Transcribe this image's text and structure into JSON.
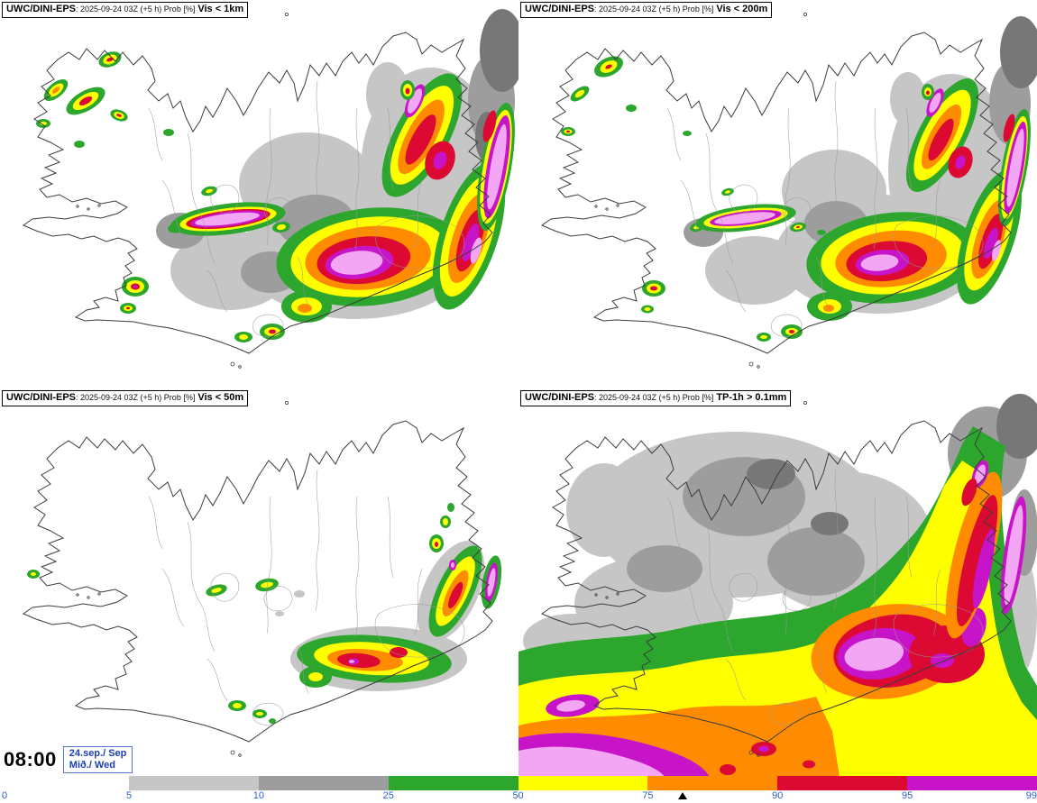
{
  "panels": [
    {
      "model": "UWC/DINI-EPS",
      "run_info": ": 2025-09-24 03Z (+5 h) Prob [%]",
      "variable": "Vis < 1km"
    },
    {
      "model": "UWC/DINI-EPS",
      "run_info": ": 2025-09-24 03Z (+5 h) Prob [%]",
      "variable": "Vis < 200m"
    },
    {
      "model": "UWC/DINI-EPS",
      "run_info": ": 2025-09-24 03Z (+5 h) Prob [%]",
      "variable": "Vis < 50m"
    },
    {
      "model": "UWC/DINI-EPS",
      "run_info": ": 2025-09-24 03Z (+5 h) Prob [%]",
      "variable": "TP-1h > 0.1mm"
    }
  ],
  "footer": {
    "time": "08:00",
    "date": "24.sep./ Sep",
    "weekday": "Mið./ Wed",
    "colorbar": {
      "ticks": [
        "0",
        "5",
        "10",
        "25",
        "50",
        "75",
        "90",
        "95",
        "99"
      ],
      "segments": [
        {
          "from": 5,
          "to": 10,
          "color": "#c6c6c6"
        },
        {
          "from": 10,
          "to": 25,
          "color": "#9d9d9d"
        },
        {
          "from": 25,
          "to": 50,
          "color": "#2ca62c"
        },
        {
          "from": 50,
          "to": 75,
          "color": "#ffff00"
        },
        {
          "from": 75,
          "to": 90,
          "color": "#ff8c00"
        },
        {
          "from": 90,
          "to": 95,
          "color": "#dc0a32"
        },
        {
          "from": 95,
          "to": 99,
          "color": "#c814c8"
        }
      ],
      "above_99_color": "#f3a6f3",
      "tick_color": "#2b5fc7"
    }
  }
}
